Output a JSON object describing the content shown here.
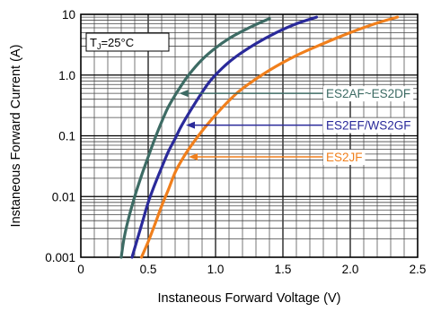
{
  "chart_data": {
    "type": "line",
    "title": "",
    "xlabel": "Instaneous Forward Voltage (V)",
    "ylabel": "Instaneous Forward Current (A)",
    "xlim": [
      0,
      2.5
    ],
    "ylim": [
      0.001,
      10
    ],
    "yscale": "log",
    "x_ticks": [
      {
        "value": 0,
        "label": "0"
      },
      {
        "value": 0.5,
        "label": "0.5"
      },
      {
        "value": 1.0,
        "label": "1.0"
      },
      {
        "value": 1.5,
        "label": "1.5"
      },
      {
        "value": 2.0,
        "label": "2.0"
      },
      {
        "value": 2.5,
        "label": "2.5"
      }
    ],
    "y_ticks": [
      {
        "value": 0.001,
        "label": "0.001"
      },
      {
        "value": 0.01,
        "label": "0.01"
      },
      {
        "value": 0.1,
        "label": "0.1"
      },
      {
        "value": 1,
        "label": "1.0"
      },
      {
        "value": 10,
        "label": "10"
      }
    ],
    "grid": true,
    "annotation": {
      "prefix": "T",
      "subscript": "J",
      "suffix": "=25°C"
    },
    "series": [
      {
        "name": "ES2AF~ES2DF",
        "color": "#3d6b64",
        "label_at": {
          "x": 1.82,
          "y": 0.5
        },
        "arrow_to": {
          "x": 0.73,
          "y": 0.5
        },
        "points": [
          [
            0.3,
            0.001
          ],
          [
            0.32,
            0.002
          ],
          [
            0.35,
            0.004
          ],
          [
            0.4,
            0.01
          ],
          [
            0.45,
            0.022
          ],
          [
            0.5,
            0.045
          ],
          [
            0.55,
            0.09
          ],
          [
            0.6,
            0.17
          ],
          [
            0.65,
            0.3
          ],
          [
            0.72,
            0.55
          ],
          [
            0.8,
            1.0
          ],
          [
            0.9,
            1.8
          ],
          [
            1.0,
            2.8
          ],
          [
            1.1,
            4.0
          ],
          [
            1.2,
            5.3
          ],
          [
            1.3,
            6.8
          ],
          [
            1.4,
            8.5
          ]
        ]
      },
      {
        "name": "ES2EF/WS2GF",
        "color": "#2a2a9a",
        "label_at": {
          "x": 1.82,
          "y": 0.15
        },
        "arrow_to": {
          "x": 0.78,
          "y": 0.15
        },
        "points": [
          [
            0.38,
            0.001
          ],
          [
            0.42,
            0.002
          ],
          [
            0.46,
            0.004
          ],
          [
            0.5,
            0.008
          ],
          [
            0.55,
            0.016
          ],
          [
            0.6,
            0.03
          ],
          [
            0.65,
            0.055
          ],
          [
            0.7,
            0.09
          ],
          [
            0.75,
            0.15
          ],
          [
            0.85,
            0.35
          ],
          [
            0.95,
            0.75
          ],
          [
            1.05,
            1.3
          ],
          [
            1.15,
            2.0
          ],
          [
            1.3,
            3.3
          ],
          [
            1.45,
            5.0
          ],
          [
            1.6,
            7.0
          ],
          [
            1.75,
            9.0
          ]
        ]
      },
      {
        "name": "ES2JF",
        "color": "#f07f1c",
        "label_at": {
          "x": 1.82,
          "y": 0.045
        },
        "arrow_to": {
          "x": 0.8,
          "y": 0.045
        },
        "points": [
          [
            0.45,
            0.001
          ],
          [
            0.5,
            0.0018
          ],
          [
            0.55,
            0.0035
          ],
          [
            0.6,
            0.007
          ],
          [
            0.65,
            0.013
          ],
          [
            0.7,
            0.025
          ],
          [
            0.75,
            0.04
          ],
          [
            0.8,
            0.06
          ],
          [
            0.9,
            0.12
          ],
          [
            1.0,
            0.22
          ],
          [
            1.1,
            0.38
          ],
          [
            1.2,
            0.6
          ],
          [
            1.4,
            1.2
          ],
          [
            1.6,
            2.1
          ],
          [
            1.8,
            3.3
          ],
          [
            2.0,
            5.0
          ],
          [
            2.2,
            7.2
          ],
          [
            2.35,
            9.0
          ]
        ]
      }
    ]
  }
}
